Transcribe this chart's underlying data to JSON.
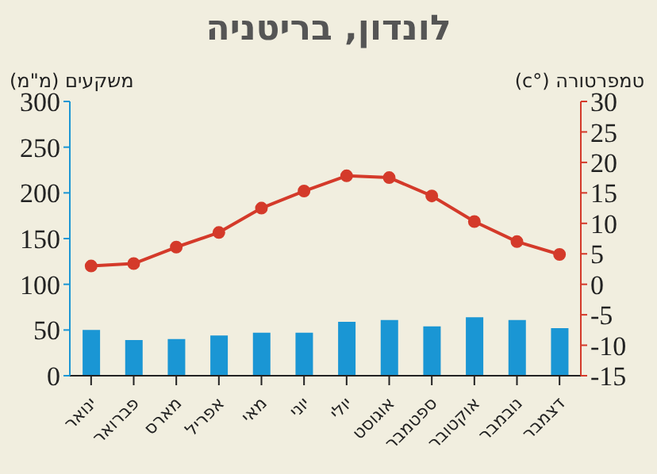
{
  "chart_data": {
    "type": "bar",
    "title": "לונדון, בריטניה",
    "ylabel": "משקעים (מ\"מ)",
    "y2label": "טמפרטורה (°c)",
    "categories": [
      "ינואר",
      "פברואר",
      "מארס",
      "אפריל",
      "מאי",
      "יוני",
      "יולי",
      "אוגוסט",
      "ספטמבר",
      "אוקטובר",
      "נובמבר",
      "דצמבר"
    ],
    "series": [
      {
        "color": "#1a96d4",
        "values": [
          50,
          39,
          40,
          44,
          47,
          47,
          59,
          61,
          54,
          64,
          61,
          52
        ]
      },
      {
        "type": "line",
        "axis": "y2",
        "color": "#d43a2a",
        "values": [
          3,
          3.4,
          6.1,
          8.5,
          12.5,
          15.3,
          17.8,
          17.5,
          14.5,
          10.3,
          7,
          4.9
        ]
      }
    ],
    "ylim": [
      0,
      300
    ],
    "yticks": [
      0,
      50,
      100,
      150,
      200,
      250,
      300
    ],
    "y2lim": [
      -15,
      30
    ],
    "y2ticks": [
      -15,
      -10,
      -5,
      0,
      5,
      10,
      15,
      20,
      25,
      30
    ],
    "marker": "circle",
    "grid": false,
    "legend": false
  }
}
